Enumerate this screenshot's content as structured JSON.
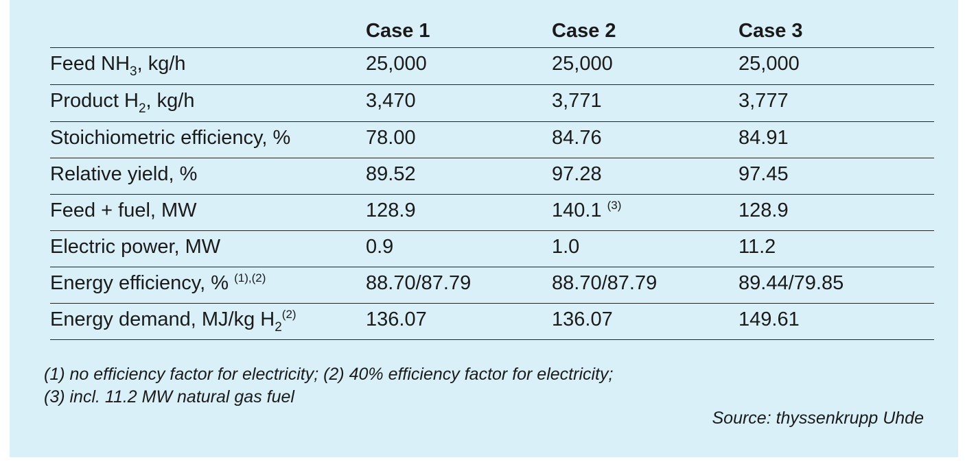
{
  "table": {
    "headers": [
      "Case 1",
      "Case 2",
      "Case 3"
    ],
    "rows": [
      {
        "label_pre": "Feed NH",
        "label_sub": "3",
        "label_post": ", kg/h",
        "values": [
          "25,000",
          "25,000",
          "25,000"
        ]
      },
      {
        "label_pre": "Product H",
        "label_sub": "2",
        "label_post": ", kg/h",
        "values": [
          "3,470",
          "3,771",
          "3,777"
        ]
      },
      {
        "label": "Stoichiometric efficiency, %",
        "values": [
          "78.00",
          "84.76",
          "84.91"
        ]
      },
      {
        "label": "Relative yield, %",
        "values": [
          "89.52",
          "97.28",
          "97.45"
        ]
      },
      {
        "label": "Feed + fuel, MW",
        "values": [
          "128.9",
          "140.1",
          "128.9"
        ],
        "value2_note": "(3)"
      },
      {
        "label": "Electric power, MW",
        "values": [
          "0.9",
          "1.0",
          "11.2"
        ]
      },
      {
        "label": "Energy efficiency, %",
        "label_note": "(1),(2)",
        "values": [
          "88.70/87.79",
          "88.70/87.79",
          "89.44/79.85"
        ]
      },
      {
        "label_pre": "Energy demand, MJ/kg H",
        "label_sub": "2",
        "label_note": "(2)",
        "values": [
          "136.07",
          "136.07",
          "149.61"
        ]
      }
    ]
  },
  "notes": {
    "line1": "(1) no efficiency factor for electricity; (2) 40% efficiency factor for electricity;",
    "line2": "(3) incl. 11.2 MW natural gas fuel"
  },
  "source": "Source: thyssenkrupp Uhde",
  "colors": {
    "panel_background": "#d9f0f8",
    "text": "#1a1a1a",
    "rule": "#222222"
  }
}
